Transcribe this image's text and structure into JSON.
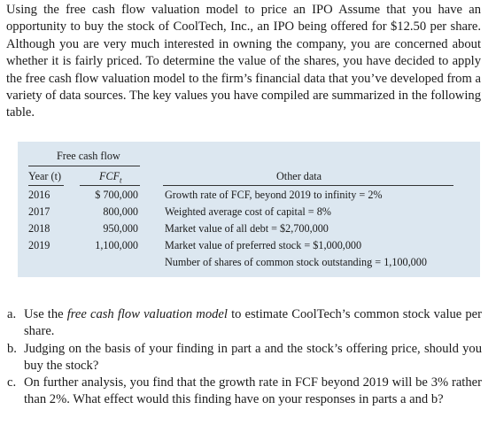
{
  "intro": {
    "title": "Using the free cash flow valuation model to price an IPO",
    "text": "Assume that you have an opportunity to buy the stock of CoolTech, Inc., an IPO being offered for $12.50 per share. Although you are very much interested in owning the company, you are concerned about whether it is fairly priced. To determine the value of the shares, you have decided to apply the free cash flow valuation model to the firm’s financial data that you’ve developed from a variety of data sources. The key values you have compiled are summarized in the following table."
  },
  "table": {
    "group_header": "Free cash flow",
    "year_header": "Year (t)",
    "fcf_header": "FCFt",
    "other_header": "Other data",
    "rows": [
      {
        "year": "2016",
        "fcf": "$ 700,000"
      },
      {
        "year": "2017",
        "fcf": "800,000"
      },
      {
        "year": "2018",
        "fcf": "950,000"
      },
      {
        "year": "2019",
        "fcf": "1,100,000"
      }
    ],
    "other": [
      "Growth rate of FCF, beyond 2019 to infinity = 2%",
      "Weighted average cost of capital = 8%",
      "Market value of all debt = $2,700,000",
      "Market value of preferred stock = $1,000,000",
      "Number of shares of common stock outstanding = 1,100,000"
    ]
  },
  "questions": {
    "a": {
      "letter": "a.",
      "pre": "Use the ",
      "em": "free cash flow valuation model",
      "post": " to estimate CoolTech’s common stock value per share."
    },
    "b": {
      "letter": "b.",
      "text": "Judging on the basis of your finding in part a and the stock’s offering price, should you buy the stock?"
    },
    "c": {
      "letter": "c.",
      "text": "On further analysis, you find that the growth rate in FCF beyond 2019 will be 3% rather than 2%. What effect would this finding have on your responses in parts a and b?"
    }
  }
}
